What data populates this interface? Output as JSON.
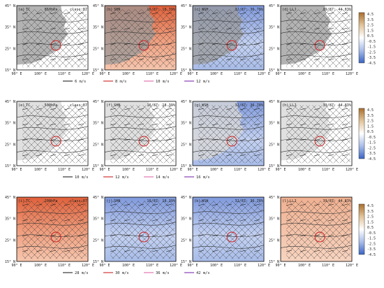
{
  "figure": {
    "rows": [
      {
        "level": "850hPa",
        "panels": [
          {
            "tag": "(a)",
            "name": "TC",
            "center": "850hPa",
            "right": "class:87",
            "map": "grey",
            "cmap": "none"
          },
          {
            "tag": "(b)",
            "name": "SHN",
            "center": "",
            "right": "16/87: 18.39%",
            "map": "grey",
            "cmap": "warm"
          },
          {
            "tag": "(c)",
            "name": "WSH",
            "center": "",
            "right": "32/87: 36.78%",
            "map": "grey",
            "cmap": "cool"
          },
          {
            "tag": "(d)",
            "name": "LLJ",
            "center": "",
            "right": "39/87: 44.83%",
            "map": "grey",
            "cmap": "none"
          }
        ],
        "wind_legend": [
          {
            "label": "6 m/s",
            "color": "#222222"
          },
          {
            "label": "8 m/s",
            "color": "#cc2222"
          },
          {
            "label": "10 m/s",
            "color": "#e06aa8"
          },
          {
            "label": "12 m/s",
            "color": "#7a2fb0"
          }
        ]
      },
      {
        "level": "500hPa",
        "panels": [
          {
            "tag": "(e)",
            "name": "TC",
            "center": "500hPa",
            "right": "class:87",
            "map": "light",
            "cmap": "none"
          },
          {
            "tag": "(f)",
            "name": "SHN",
            "center": "",
            "right": "16/87: 18.39%",
            "map": "light",
            "cmap": "none"
          },
          {
            "tag": "(g)",
            "name": "WSH",
            "center": "",
            "right": "32/87: 36.78%",
            "map": "light",
            "cmap": "cool"
          },
          {
            "tag": "(h)",
            "name": "LLJ",
            "center": "",
            "right": "39/87: 44.83%",
            "map": "light",
            "cmap": "none"
          }
        ],
        "wind_legend": [
          {
            "label": "10 m/s",
            "color": "#222222"
          },
          {
            "label": "12 m/s",
            "color": "#cc2222"
          },
          {
            "label": "14 m/s",
            "color": "#e06aa8"
          },
          {
            "label": "16 m/s",
            "color": "#7a2fb0"
          }
        ]
      },
      {
        "level": "200hPa",
        "panels": [
          {
            "tag": "(i)",
            "name": "TC",
            "center": "200hPa",
            "right": "class:87",
            "map": "none",
            "cmap": "warm"
          },
          {
            "tag": "(j)",
            "name": "SHN",
            "center": "",
            "right": "16/87: 18.39%",
            "map": "none",
            "cmap": "cool"
          },
          {
            "tag": "(k)",
            "name": "WSH",
            "center": "",
            "right": "32/87: 36.78%",
            "map": "none",
            "cmap": "cool"
          },
          {
            "tag": "(l)",
            "name": "LLJ",
            "center": "",
            "right": "39/87: 44.83%",
            "map": "none",
            "cmap": "warmlight"
          }
        ],
        "wind_legend": [
          {
            "label": "28 m/s",
            "color": "#222222"
          },
          {
            "label": "30 m/s",
            "color": "#cc2222"
          },
          {
            "label": "36 m/s",
            "color": "#e06aa8"
          },
          {
            "label": "42 m/s",
            "color": "#7a2fb0"
          }
        ]
      }
    ],
    "colorbar": {
      "ticks": [
        "4.5",
        "3.5",
        "2.5",
        "1.5",
        "0.5",
        "-0.5",
        "-1.5",
        "-2.5",
        "-3.5",
        "-4.5"
      ],
      "top_color": "#a86f2e",
      "mid_color": "#ffffff",
      "bottom_color": "#3a64c4"
    }
  },
  "chart_data": {
    "type": "heatmap",
    "x_ticks": [
      "90° E",
      "100° E",
      "110° E",
      "120° E"
    ],
    "y_ticks": [
      "45° N",
      "35° N",
      "25° N",
      "15° N"
    ],
    "xlim": [
      90,
      120
    ],
    "ylim": [
      15,
      45
    ],
    "contour_labels": [
      "1240",
      "1220",
      "1260",
      "1280",
      "12440",
      "588",
      "584",
      "586"
    ],
    "colorbar_range": [
      -4.5,
      4.5
    ],
    "panels": 12
  }
}
